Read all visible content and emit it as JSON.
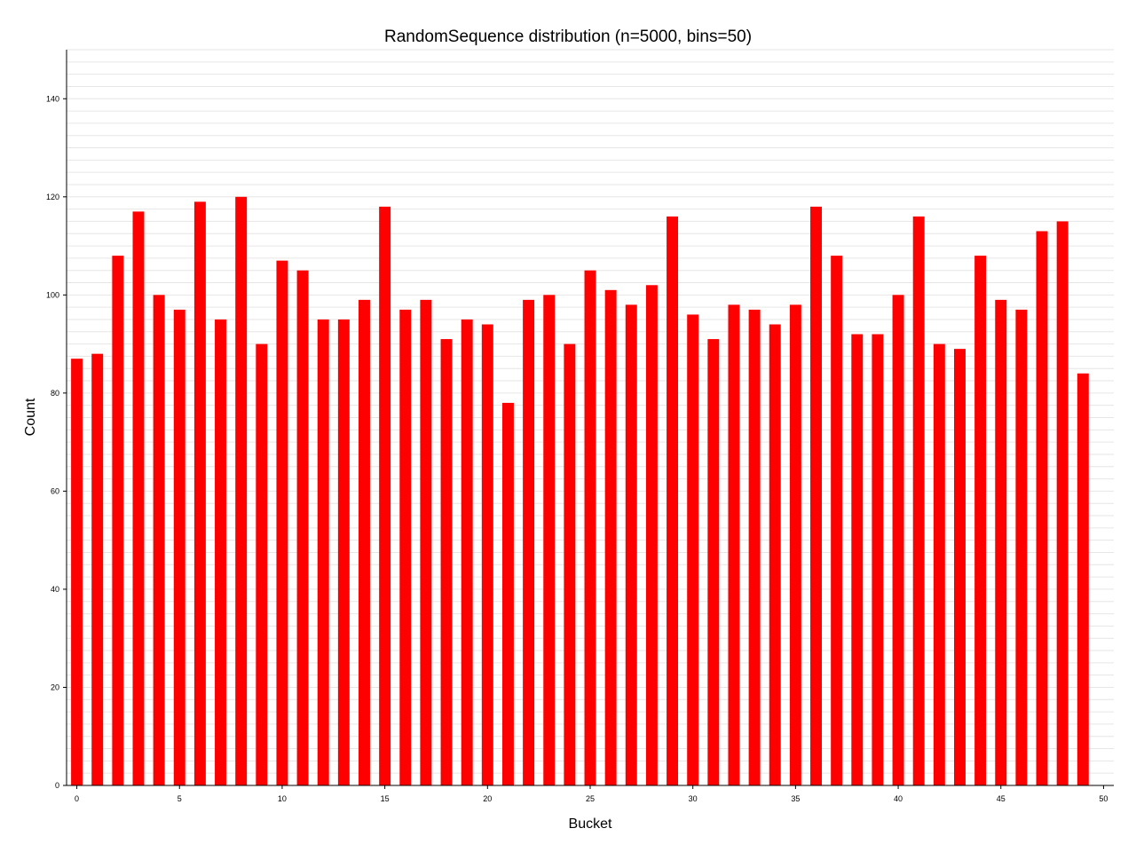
{
  "chart_data": {
    "type": "bar",
    "title": "RandomSequence distribution (n=5000, bins=50)",
    "xlabel": "Bucket",
    "ylabel": "Count",
    "bar_color": "#ff0000",
    "grid_color": "#e6e6e6",
    "xlim": [
      -0.5,
      50.5
    ],
    "ylim": [
      0,
      150
    ],
    "x_ticks": [
      0,
      5,
      10,
      15,
      20,
      25,
      30,
      35,
      40,
      45,
      50
    ],
    "y_ticks": [
      0,
      20,
      40,
      60,
      80,
      100,
      120,
      140
    ],
    "y_grid_step": 2.5,
    "grid": true,
    "x": [
      0,
      1,
      2,
      3,
      4,
      5,
      6,
      7,
      8,
      9,
      10,
      11,
      12,
      13,
      14,
      15,
      16,
      17,
      18,
      19,
      20,
      21,
      22,
      23,
      24,
      25,
      26,
      27,
      28,
      29,
      30,
      31,
      32,
      33,
      34,
      35,
      36,
      37,
      38,
      39,
      40,
      41,
      42,
      43,
      44,
      45,
      46,
      47,
      48,
      49
    ],
    "values": [
      87,
      88,
      108,
      117,
      100,
      97,
      119,
      95,
      120,
      90,
      107,
      105,
      95,
      95,
      99,
      118,
      97,
      99,
      91,
      95,
      94,
      78,
      99,
      100,
      90,
      105,
      101,
      98,
      102,
      116,
      96,
      91,
      98,
      97,
      94,
      98,
      118,
      108,
      92,
      92,
      100,
      116,
      90,
      89,
      108,
      99,
      97,
      113,
      115,
      84
    ]
  }
}
